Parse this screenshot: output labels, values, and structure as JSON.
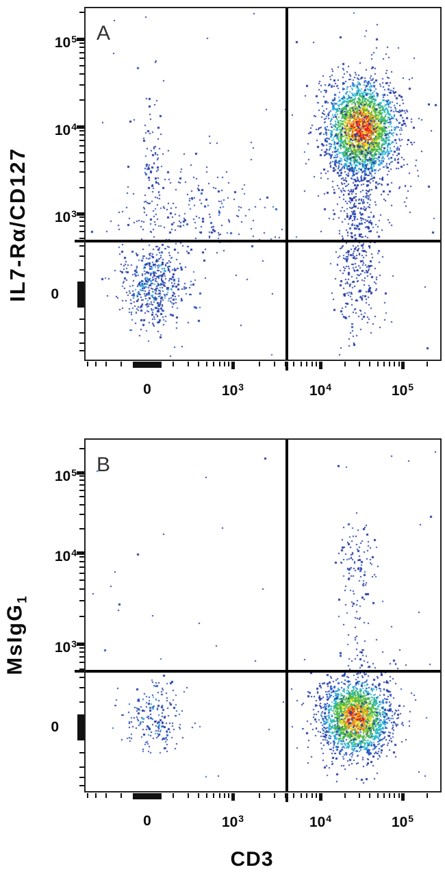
{
  "figure": {
    "background": "#ffffff",
    "frame_color": "#222222",
    "gate_color": "#000000",
    "dot_palette": {
      "dark_blue": "#2a3ea6",
      "blue": "#2b5fc7",
      "cyan": "#2fa8dc",
      "teal": "#2fbcc9",
      "green": "#49b749",
      "yellow_green": "#8cc63e",
      "yellow": "#f3ea1c",
      "orange": "#f58b1f",
      "red": "#e6231e"
    }
  },
  "chart_data": [
    {
      "type": "scatter",
      "panel_letter": "A",
      "xlabel": "CD3",
      "ylabel": "IL7-Rα/CD127",
      "scale": "biexponential log10",
      "x_ticks": [
        {
          "label": "0",
          "log": 2
        },
        {
          "base": "10",
          "exp": "3",
          "log": 3
        },
        {
          "base": "10",
          "exp": "4",
          "log": 4
        },
        {
          "base": "10",
          "exp": "5",
          "log": 5
        }
      ],
      "y_ticks": [
        {
          "base": "10",
          "exp": "5",
          "log": 5
        },
        {
          "base": "10",
          "exp": "4",
          "log": 4
        },
        {
          "base": "10",
          "exp": "3",
          "log": 3
        },
        {
          "label": "0",
          "log": 2
        }
      ],
      "quadrant_gate": {
        "x_log": 3.62,
        "y_log": 2.66
      },
      "populations": [
        {
          "region": "upper-right dense cluster",
          "x_log": 4.5,
          "y_log": 3.98,
          "sx": 0.21,
          "sy": 0.26,
          "n": 2400,
          "palette": "hot",
          "intensity": 1.0
        },
        {
          "region": "upper-right halo",
          "x_log": 4.5,
          "y_log": 3.92,
          "sx": 0.33,
          "sy": 0.45,
          "n": 330,
          "palette": "blue"
        },
        {
          "region": "right column mid",
          "x_log": 4.46,
          "y_log": 3.22,
          "sx": 0.15,
          "sy": 0.28,
          "n": 240,
          "palette": "blue"
        },
        {
          "region": "lower-right column",
          "x_log": 4.46,
          "y_log": 2.28,
          "sx": 0.14,
          "sy": 0.4,
          "n": 290,
          "palette": "blue"
        },
        {
          "region": "lower-left cluster",
          "x_log": 2.07,
          "y_log": 2.1,
          "sx": 0.19,
          "sy": 0.25,
          "n": 520,
          "palette": "blue-cyan"
        },
        {
          "region": "mid-left band",
          "x_log": 2.5,
          "y_log": 3.0,
          "sx": 0.5,
          "sy": 0.3,
          "n": 220,
          "palette": "blue"
        },
        {
          "region": "upper-left trail",
          "x_log": 2.07,
          "y_log": 3.5,
          "sx": 0.09,
          "sy": 0.4,
          "n": 80,
          "palette": "blue"
        },
        {
          "region": "background",
          "uniform": true,
          "n": 55,
          "palette": "blue"
        }
      ]
    },
    {
      "type": "scatter",
      "panel_letter": "B",
      "xlabel": "CD3",
      "ylabel": "MsIgG",
      "ylabel_sub": "1",
      "scale": "biexponential log10",
      "x_ticks": [
        {
          "label": "0",
          "log": 2
        },
        {
          "base": "10",
          "exp": "3",
          "log": 3
        },
        {
          "base": "10",
          "exp": "4",
          "log": 4
        },
        {
          "base": "10",
          "exp": "5",
          "log": 5
        }
      ],
      "y_ticks": [
        {
          "base": "10",
          "exp": "5",
          "log": 5
        },
        {
          "base": "10",
          "exp": "4",
          "log": 4
        },
        {
          "base": "10",
          "exp": "3",
          "log": 3
        },
        {
          "label": "0",
          "log": 2
        }
      ],
      "quadrant_gate": {
        "x_log": 3.62,
        "y_log": 2.67
      },
      "populations": [
        {
          "region": "lower-right dense cluster",
          "x_log": 4.43,
          "y_log": 2.12,
          "sx": 0.2,
          "sy": 0.22,
          "n": 2000,
          "palette": "hot",
          "intensity": 0.93
        },
        {
          "region": "lower-right halo",
          "x_log": 4.43,
          "y_log": 2.12,
          "sx": 0.32,
          "sy": 0.36,
          "n": 240,
          "palette": "blue"
        },
        {
          "region": "upper-right cluster",
          "x_log": 4.43,
          "y_log": 3.95,
          "sx": 0.13,
          "sy": 0.2,
          "n": 85,
          "palette": "blue"
        },
        {
          "region": "right column trail",
          "x_log": 4.43,
          "y_log": 3.25,
          "sx": 0.11,
          "sy": 0.42,
          "n": 60,
          "palette": "blue"
        },
        {
          "region": "lower-left cluster",
          "x_log": 2.1,
          "y_log": 2.12,
          "sx": 0.18,
          "sy": 0.2,
          "n": 200,
          "palette": "blue-cyan"
        },
        {
          "region": "background",
          "uniform": true,
          "n": 38,
          "palette": "blue"
        }
      ]
    }
  ]
}
